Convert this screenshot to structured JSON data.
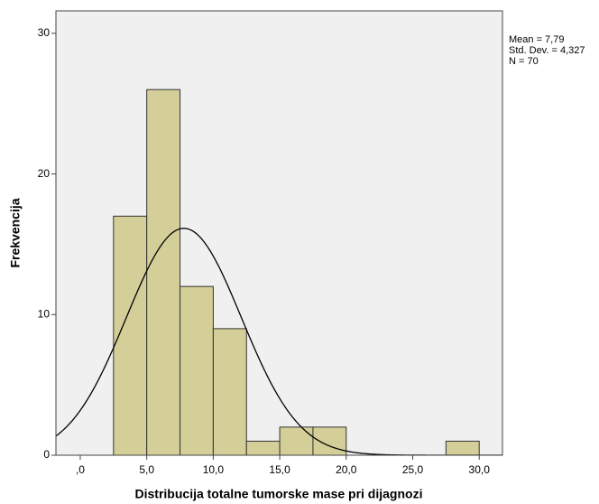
{
  "chart_data": {
    "type": "histogram",
    "xlabel": "Distribucija totalne tumorske mase pri dijagnozi",
    "ylabel": "Frekvencija",
    "bins": [
      2.5,
      5,
      7.5,
      10,
      12.5,
      15,
      17.5,
      20,
      22.5,
      25,
      27.5,
      30
    ],
    "counts": [
      17,
      26,
      12,
      9,
      1,
      2,
      2,
      0,
      0,
      0,
      1
    ],
    "color": "#d4cf98",
    "edgecolor": "#333333",
    "plot_background": "#f0f0f0",
    "xlim": [
      -1.83,
      31.75
    ],
    "ylim": [
      0,
      31.6
    ],
    "xticks": [
      {
        "value": 0,
        "label": ",0"
      },
      {
        "value": 5,
        "label": "5,0"
      },
      {
        "value": 10,
        "label": "10,0"
      },
      {
        "value": 15,
        "label": "15,0"
      },
      {
        "value": 20,
        "label": "20,0"
      },
      {
        "value": 25,
        "label": "25,0"
      },
      {
        "value": 30,
        "label": "30,0"
      }
    ],
    "yticks": [
      0,
      10,
      20,
      30
    ],
    "normal_curve": true,
    "stats": {
      "mean": {
        "value": 7.79,
        "label": "Mean = 7,79"
      },
      "sd": {
        "value": 4.327,
        "label": "Std. Dev. = 4,327"
      },
      "n": {
        "value": 70,
        "label": "N = 70"
      }
    }
  }
}
